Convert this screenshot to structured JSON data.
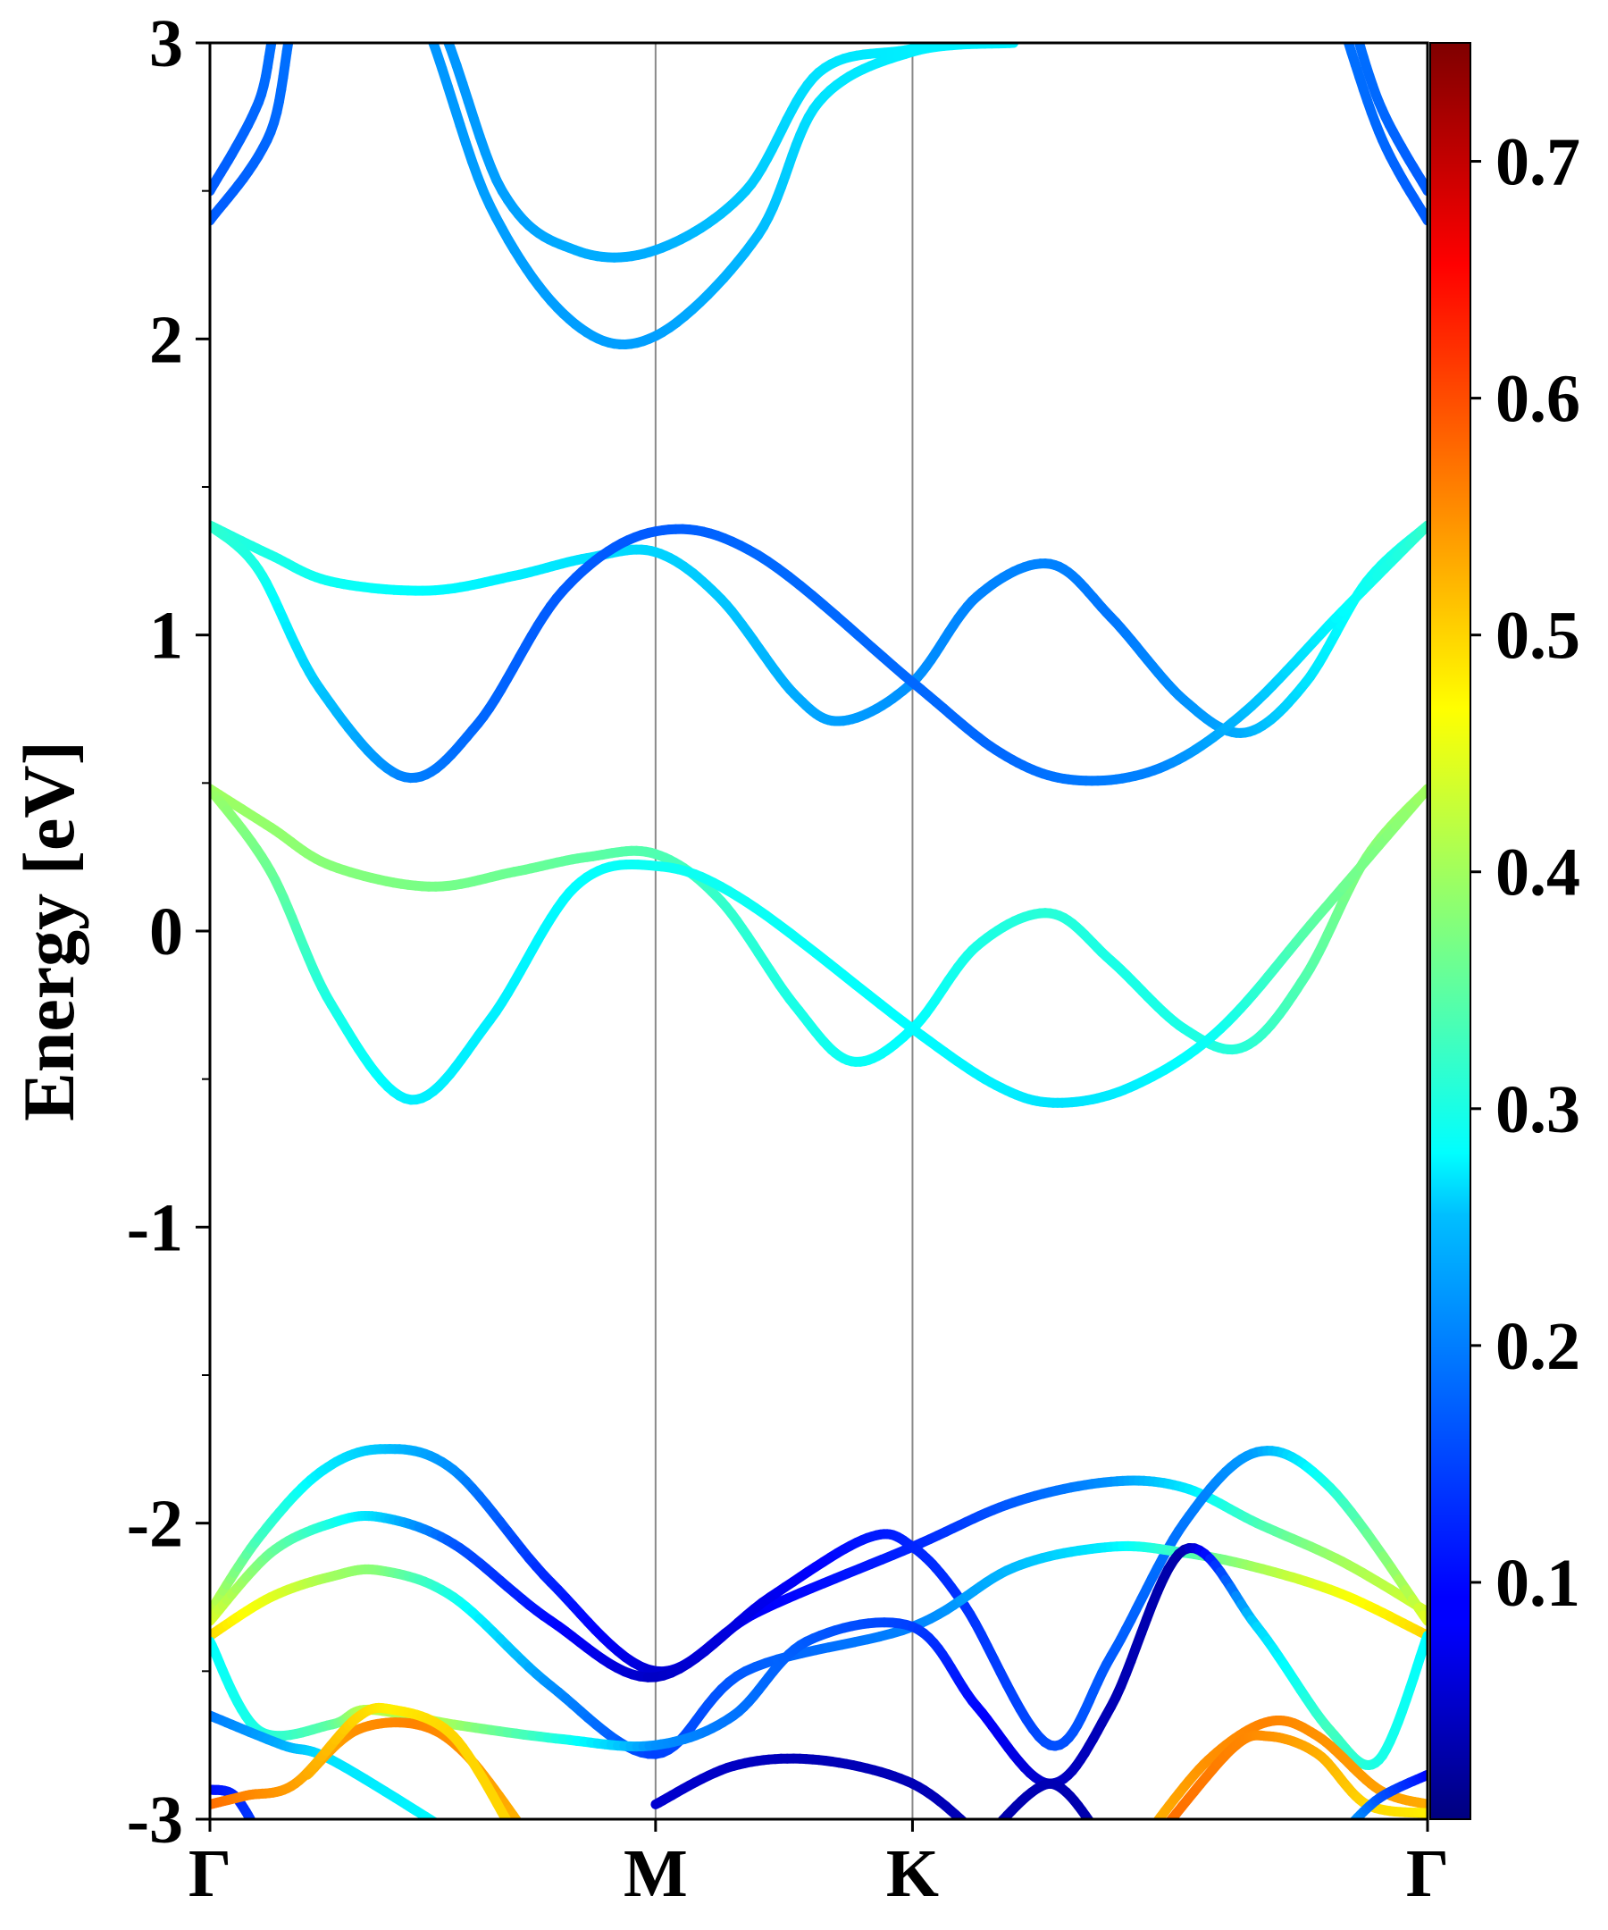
{
  "chart_data": {
    "type": "line",
    "title": "",
    "xlabel": "",
    "ylabel": "Energy [eV]",
    "ylim": [
      -3,
      3
    ],
    "xlim": [
      0,
      1
    ],
    "yticks": [
      {
        "value": 3,
        "label": "3"
      },
      {
        "value": 2,
        "label": "2"
      },
      {
        "value": 1,
        "label": "1"
      },
      {
        "value": 0,
        "label": "0"
      },
      {
        "value": -1,
        "label": "-1"
      },
      {
        "value": -2,
        "label": "-2"
      },
      {
        "value": -3,
        "label": "-3"
      }
    ],
    "yminor": [
      2.5,
      1.5,
      0.5,
      -0.5,
      -1.5,
      -2.5
    ],
    "kpoints": [
      {
        "label": "Γ",
        "x": 0.0
      },
      {
        "label": "M",
        "x": 0.366
      },
      {
        "label": "K",
        "x": 0.577
      },
      {
        "label": "Γ",
        "x": 1.0
      }
    ],
    "colorbar": {
      "min": 0.0,
      "max": 0.75,
      "cmap": "jet",
      "ticks": [
        {
          "value": 0.1,
          "label": "0.1"
        },
        {
          "value": 0.2,
          "label": "0.2"
        },
        {
          "value": 0.3,
          "label": "0.3"
        },
        {
          "value": 0.4,
          "label": "0.4"
        },
        {
          "value": 0.5,
          "label": "0.5"
        },
        {
          "value": 0.6,
          "label": "0.6"
        },
        {
          "value": 0.7,
          "label": "0.7"
        }
      ]
    },
    "series": [
      {
        "name": "cb-upper-1",
        "points": [
          [
            0,
            2.5
          ],
          [
            0.04,
            2.8
          ],
          [
            0.07,
            3.2
          ],
          [
            0.17,
            3.2
          ],
          [
            0.24,
            2.5
          ],
          [
            0.3,
            2.3
          ],
          [
            0.366,
            2.3
          ],
          [
            0.44,
            2.5
          ],
          [
            0.5,
            2.9
          ],
          [
            0.577,
            2.98
          ],
          [
            0.66,
            3.05
          ]
        ],
        "weights": [
          0.16,
          0.17,
          0.18,
          0.2,
          0.21,
          0.22,
          0.22,
          0.24,
          0.26,
          0.27,
          0.27
        ]
      },
      {
        "name": "cb-upper-2",
        "points": [
          [
            0,
            2.4
          ],
          [
            0.05,
            2.7
          ],
          [
            0.08,
            3.2
          ],
          [
            0.16,
            3.2
          ],
          [
            0.23,
            2.45
          ],
          [
            0.3,
            2.05
          ],
          [
            0.366,
            2.01
          ],
          [
            0.45,
            2.35
          ],
          [
            0.5,
            2.8
          ],
          [
            0.577,
            2.97
          ],
          [
            0.66,
            3.0
          ]
        ],
        "weights": [
          0.16,
          0.17,
          0.18,
          0.2,
          0.21,
          0.21,
          0.21,
          0.23,
          0.26,
          0.27,
          0.27
        ]
      },
      {
        "name": "cb-upper-3",
        "points": [
          [
            1,
            2.5
          ],
          [
            0.96,
            2.8
          ],
          [
            0.93,
            3.2
          ]
        ],
        "weights": [
          0.16,
          0.17,
          0.18
        ]
      },
      {
        "name": "cb-upper-4",
        "points": [
          [
            1,
            2.4
          ],
          [
            0.96,
            2.7
          ],
          [
            0.92,
            3.2
          ]
        ],
        "weights": [
          0.16,
          0.17,
          0.18
        ]
      },
      {
        "name": "cb-1",
        "points": [
          [
            0,
            1.37
          ],
          [
            0.05,
            1.27
          ],
          [
            0.1,
            1.18
          ],
          [
            0.18,
            1.15
          ],
          [
            0.25,
            1.2
          ],
          [
            0.31,
            1.26
          ],
          [
            0.366,
            1.28
          ],
          [
            0.42,
            1.12
          ],
          [
            0.48,
            0.8
          ],
          [
            0.52,
            0.71
          ],
          [
            0.577,
            0.84
          ],
          [
            0.63,
            1.13
          ],
          [
            0.69,
            1.24
          ],
          [
            0.74,
            1.06
          ],
          [
            0.8,
            0.78
          ],
          [
            0.85,
            0.67
          ],
          [
            0.9,
            0.84
          ],
          [
            0.95,
            1.18
          ],
          [
            1,
            1.37
          ]
        ],
        "weights": [
          0.31,
          0.3,
          0.29,
          0.28,
          0.27,
          0.26,
          0.25,
          0.24,
          0.22,
          0.21,
          0.2,
          0.19,
          0.19,
          0.18,
          0.2,
          0.22,
          0.26,
          0.29,
          0.31
        ]
      },
      {
        "name": "cb-2",
        "points": [
          [
            0,
            1.37
          ],
          [
            0.04,
            1.22
          ],
          [
            0.09,
            0.82
          ],
          [
            0.16,
            0.52
          ],
          [
            0.22,
            0.7
          ],
          [
            0.29,
            1.15
          ],
          [
            0.366,
            1.35
          ],
          [
            0.45,
            1.27
          ],
          [
            0.577,
            0.84
          ],
          [
            0.65,
            0.6
          ],
          [
            0.71,
            0.51
          ],
          [
            0.78,
            0.55
          ],
          [
            0.85,
            0.74
          ],
          [
            0.93,
            1.08
          ],
          [
            1,
            1.37
          ]
        ],
        "weights": [
          0.32,
          0.3,
          0.24,
          0.19,
          0.17,
          0.16,
          0.16,
          0.17,
          0.17,
          0.17,
          0.18,
          0.19,
          0.23,
          0.28,
          0.32
        ]
      },
      {
        "name": "vb-1",
        "points": [
          [
            0,
            0.48
          ],
          [
            0.05,
            0.35
          ],
          [
            0.1,
            0.22
          ],
          [
            0.18,
            0.15
          ],
          [
            0.25,
            0.2
          ],
          [
            0.31,
            0.25
          ],
          [
            0.366,
            0.26
          ],
          [
            0.42,
            0.1
          ],
          [
            0.48,
            -0.25
          ],
          [
            0.527,
            -0.44
          ],
          [
            0.577,
            -0.33
          ],
          [
            0.63,
            -0.05
          ],
          [
            0.69,
            0.06
          ],
          [
            0.74,
            -0.1
          ],
          [
            0.8,
            -0.33
          ],
          [
            0.85,
            -0.39
          ],
          [
            0.9,
            -0.15
          ],
          [
            0.95,
            0.25
          ],
          [
            1,
            0.48
          ]
        ],
        "weights": [
          0.4,
          0.39,
          0.38,
          0.37,
          0.36,
          0.35,
          0.34,
          0.32,
          0.3,
          0.29,
          0.28,
          0.3,
          0.31,
          0.3,
          0.3,
          0.31,
          0.34,
          0.38,
          0.4
        ]
      },
      {
        "name": "vb-2",
        "points": [
          [
            0,
            0.48
          ],
          [
            0.05,
            0.2
          ],
          [
            0.1,
            -0.25
          ],
          [
            0.165,
            -0.57
          ],
          [
            0.23,
            -0.3
          ],
          [
            0.3,
            0.15
          ],
          [
            0.366,
            0.22
          ],
          [
            0.44,
            0.1
          ],
          [
            0.577,
            -0.33
          ],
          [
            0.65,
            -0.53
          ],
          [
            0.7,
            -0.58
          ],
          [
            0.76,
            -0.52
          ],
          [
            0.83,
            -0.33
          ],
          [
            0.91,
            0.05
          ],
          [
            1,
            0.48
          ]
        ],
        "weights": [
          0.4,
          0.36,
          0.3,
          0.27,
          0.27,
          0.28,
          0.29,
          0.29,
          0.28,
          0.27,
          0.26,
          0.27,
          0.29,
          0.35,
          0.4
        ]
      },
      {
        "name": "vb-3",
        "points": [
          [
            0,
            -2.3
          ],
          [
            0.04,
            -2.05
          ],
          [
            0.09,
            -1.83
          ],
          [
            0.14,
            -1.75
          ],
          [
            0.2,
            -1.82
          ],
          [
            0.28,
            -2.2
          ],
          [
            0.366,
            -2.5
          ],
          [
            0.45,
            -2.3
          ],
          [
            0.577,
            -2.08
          ],
          [
            0.66,
            -1.93
          ],
          [
            0.74,
            -1.86
          ],
          [
            0.8,
            -1.88
          ],
          [
            0.86,
            -2.0
          ],
          [
            0.93,
            -2.13
          ],
          [
            1,
            -2.3
          ]
        ],
        "weights": [
          0.44,
          0.33,
          0.27,
          0.24,
          0.2,
          0.12,
          0.06,
          0.09,
          0.12,
          0.16,
          0.2,
          0.26,
          0.33,
          0.4,
          0.44
        ]
      },
      {
        "name": "vb-4",
        "points": [
          [
            0,
            -2.33
          ],
          [
            0.05,
            -2.1
          ],
          [
            0.1,
            -2.0
          ],
          [
            0.14,
            -1.98
          ],
          [
            0.2,
            -2.07
          ],
          [
            0.28,
            -2.33
          ],
          [
            0.366,
            -2.52
          ],
          [
            0.46,
            -2.25
          ],
          [
            0.54,
            -2.05
          ],
          [
            0.577,
            -2.08
          ],
          [
            0.62,
            -2.28
          ],
          [
            0.69,
            -2.75
          ],
          [
            0.74,
            -2.45
          ],
          [
            0.8,
            -2.0
          ],
          [
            0.86,
            -1.76
          ],
          [
            0.92,
            -1.88
          ],
          [
            1,
            -2.33
          ]
        ],
        "weights": [
          0.45,
          0.36,
          0.3,
          0.25,
          0.16,
          0.1,
          0.05,
          0.08,
          0.11,
          0.12,
          0.13,
          0.15,
          0.16,
          0.18,
          0.21,
          0.3,
          0.45
        ]
      },
      {
        "name": "vb-5",
        "points": [
          [
            0,
            -2.38
          ],
          [
            0.05,
            -2.25
          ],
          [
            0.1,
            -2.18
          ],
          [
            0.14,
            -2.16
          ],
          [
            0.2,
            -2.25
          ],
          [
            0.28,
            -2.55
          ],
          [
            0.366,
            -2.78
          ],
          [
            0.44,
            -2.5
          ],
          [
            0.577,
            -2.35
          ],
          [
            0.66,
            -2.15
          ],
          [
            0.74,
            -2.08
          ],
          [
            0.8,
            -2.1
          ],
          [
            0.86,
            -2.15
          ],
          [
            0.93,
            -2.24
          ],
          [
            1,
            -2.38
          ]
        ],
        "weights": [
          0.5,
          0.45,
          0.4,
          0.38,
          0.3,
          0.2,
          0.14,
          0.16,
          0.19,
          0.23,
          0.27,
          0.33,
          0.4,
          0.46,
          0.5
        ]
      },
      {
        "name": "vb-6",
        "points": [
          [
            0,
            -2.4
          ],
          [
            0.04,
            -2.7
          ],
          [
            0.1,
            -2.68
          ],
          [
            0.13,
            -2.63
          ],
          [
            0.2,
            -2.68
          ],
          [
            0.29,
            -2.73
          ],
          [
            0.366,
            -2.75
          ],
          [
            0.43,
            -2.65
          ],
          [
            0.49,
            -2.4
          ],
          [
            0.577,
            -2.35
          ],
          [
            0.63,
            -2.62
          ],
          [
            0.69,
            -2.88
          ],
          [
            0.74,
            -2.62
          ],
          [
            0.8,
            -2.09
          ],
          [
            0.86,
            -2.35
          ],
          [
            0.92,
            -2.7
          ],
          [
            0.96,
            -2.8
          ],
          [
            1,
            -2.38
          ]
        ],
        "weights": [
          0.28,
          0.3,
          0.35,
          0.42,
          0.4,
          0.3,
          0.2,
          0.18,
          0.16,
          0.14,
          0.1,
          0.05,
          0.04,
          0.03,
          0.25,
          0.33,
          0.3,
          0.28
        ]
      },
      {
        "name": "vb-7",
        "points": [
          [
            0,
            -2.65
          ],
          [
            0.06,
            -2.75
          ],
          [
            0.1,
            -2.8
          ],
          [
            0.2,
            -3.05
          ]
        ],
        "weights": [
          0.18,
          0.22,
          0.26,
          0.28
        ]
      },
      {
        "name": "vb-8",
        "points": [
          [
            0.366,
            -2.95
          ],
          [
            0.43,
            -2.82
          ],
          [
            0.5,
            -2.8
          ],
          [
            0.577,
            -2.88
          ],
          [
            0.63,
            -3.05
          ]
        ],
        "weights": [
          0.06,
          0.05,
          0.04,
          0.04,
          0.04
        ]
      },
      {
        "name": "vb-9",
        "points": [
          [
            0,
            -2.9
          ],
          [
            0.02,
            -2.92
          ],
          [
            0.04,
            -3.05
          ]
        ],
        "weights": [
          0.1,
          0.12,
          0.14
        ]
      },
      {
        "name": "vb-10",
        "points": [
          [
            0.08,
            -2.85
          ],
          [
            0.12,
            -2.7
          ],
          [
            0.17,
            -2.68
          ],
          [
            0.21,
            -2.78
          ],
          [
            0.26,
            -3.05
          ]
        ],
        "weights": [
          0.52,
          0.55,
          0.56,
          0.55,
          0.52
        ]
      },
      {
        "name": "vb-11",
        "points": [
          [
            0,
            -2.95
          ],
          [
            0.03,
            -2.92
          ],
          [
            0.07,
            -2.88
          ],
          [
            0.12,
            -2.66
          ],
          [
            0.15,
            -2.63
          ],
          [
            0.2,
            -2.72
          ],
          [
            0.25,
            -3.05
          ]
        ],
        "weights": [
          0.58,
          0.56,
          0.54,
          0.5,
          0.48,
          0.5,
          0.5
        ]
      },
      {
        "name": "vb-12",
        "points": [
          [
            0.77,
            -3.05
          ],
          [
            0.82,
            -2.8
          ],
          [
            0.87,
            -2.67
          ],
          [
            0.91,
            -2.72
          ],
          [
            0.96,
            -2.9
          ],
          [
            1,
            -2.95
          ]
        ],
        "weights": [
          0.52,
          0.55,
          0.56,
          0.55,
          0.54,
          0.53
        ]
      },
      {
        "name": "vb-13",
        "points": [
          [
            0.78,
            -3.05
          ],
          [
            0.84,
            -2.76
          ],
          [
            0.87,
            -2.72
          ],
          [
            0.91,
            -2.78
          ],
          [
            0.95,
            -2.95
          ],
          [
            1,
            -2.98
          ]
        ],
        "weights": [
          0.58,
          0.56,
          0.55,
          0.53,
          0.5,
          0.48
        ]
      },
      {
        "name": "vb-14",
        "points": [
          [
            0.93,
            -3.05
          ],
          [
            0.96,
            -2.93
          ],
          [
            1,
            -2.85
          ]
        ],
        "weights": [
          0.24,
          0.16,
          0.1
        ]
      },
      {
        "name": "vb-15",
        "points": [
          [
            0.64,
            -3.05
          ],
          [
            0.69,
            -2.88
          ],
          [
            0.73,
            -3.05
          ]
        ],
        "weights": [
          0.03,
          0.04,
          0.03
        ]
      }
    ]
  }
}
